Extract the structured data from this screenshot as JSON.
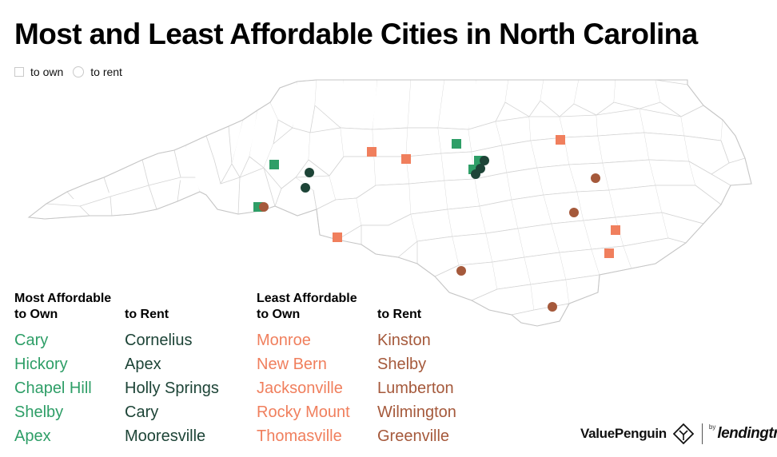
{
  "title": "Most and Least Affordable Cities in North Carolina",
  "legend": {
    "own_label": "to own",
    "rent_label": "to rent"
  },
  "colors": {
    "most_own": "#2e9e67",
    "most_rent": "#1d4437",
    "least_own": "#f07f5d",
    "least_rent": "#a5593b"
  },
  "most_affordable": {
    "heading_line1": "Most Affordable",
    "own_heading": "to Own",
    "rent_heading": "to Rent",
    "own": [
      "Cary",
      "Hickory",
      "Chapel Hill",
      "Shelby",
      "Apex"
    ],
    "rent": [
      "Cornelius",
      "Apex",
      "Holly Springs",
      "Cary",
      "Mooresville"
    ]
  },
  "least_affordable": {
    "heading_line1": "Least Affordable",
    "own_heading": "to Own",
    "rent_heading": "to Rent",
    "own": [
      "Monroe",
      "New Bern",
      "Jacksonville",
      "Rocky Mount",
      "Thomasville"
    ],
    "rent": [
      "Kinston",
      "Shelby",
      "Lumberton",
      "Wilmington",
      "Greenville"
    ]
  },
  "brand": {
    "valuepenguin": "ValuePenguin",
    "by": "by",
    "lendingtree": "lendingtree",
    "valuepenguin_logo_icon": "penguin-diamond-icon",
    "lendingtree_logo_icon": "leaf-icon"
  }
}
